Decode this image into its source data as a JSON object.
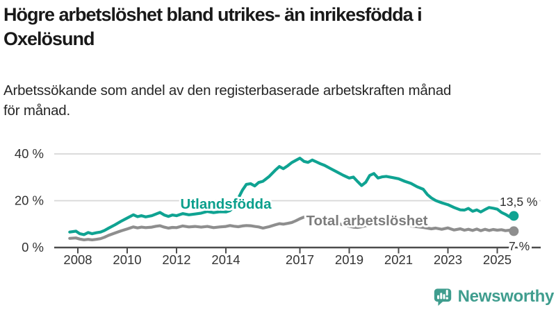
{
  "header": {
    "title": "Högre arbetslöshet bland utrikes- än inrikesfödda i Oxelösund",
    "title_lines": [
      "Högre arbetslöshet bland utrikes- än inrikesfödda i",
      "Oxelösund"
    ],
    "subtitle": "Arbetssökande som andel av den registerbaserade arbetskraften månad för månad.",
    "subtitle_lines": [
      "Arbetssökande som andel av den registerbaserade arbetskraften månad",
      "för månad."
    ]
  },
  "chart_data": {
    "type": "line",
    "title": "Högre arbetslöshet bland utrikes- än inrikesfödda i Oxelösund",
    "subtitle": "Arbetssökande som andel av den registerbaserade arbetskraften månad för månad.",
    "unit": "%",
    "grid": "horizontal",
    "legend_position": "inline-labels",
    "ylim": [
      0,
      42
    ],
    "xlim": [
      2007.6,
      2025.8
    ],
    "y_ticks": [
      {
        "value": 0,
        "label": "0 %"
      },
      {
        "value": 20,
        "label": "20 %"
      },
      {
        "value": 40,
        "label": "40 %"
      }
    ],
    "x_ticks": [
      {
        "year": 2008,
        "label": "2008"
      },
      {
        "year": 2010,
        "label": "2010"
      },
      {
        "year": 2012,
        "label": "2012"
      },
      {
        "year": 2014,
        "label": "2014"
      },
      {
        "year": 2017,
        "label": "2017"
      },
      {
        "year": 2019,
        "label": "2019"
      },
      {
        "year": 2021,
        "label": "2021"
      },
      {
        "year": 2023,
        "label": "2023"
      },
      {
        "year": 2025,
        "label": "2025"
      }
    ],
    "x": [
      2007.67,
      2007.92,
      2008.08,
      2008.25,
      2008.42,
      2008.58,
      2008.75,
      2008.92,
      2009.08,
      2009.25,
      2009.5,
      2009.75,
      2010,
      2010.25,
      2010.42,
      2010.58,
      2010.75,
      2011,
      2011.17,
      2011.33,
      2011.5,
      2011.67,
      2011.83,
      2012,
      2012.25,
      2012.5,
      2012.75,
      2013,
      2013.25,
      2013.5,
      2013.75,
      2014,
      2014.17,
      2014.33,
      2014.5,
      2014.67,
      2014.83,
      2015,
      2015.17,
      2015.33,
      2015.5,
      2015.75,
      2016,
      2016.17,
      2016.33,
      2016.5,
      2016.67,
      2016.83,
      2017,
      2017.17,
      2017.33,
      2017.5,
      2017.67,
      2017.83,
      2018,
      2018.25,
      2018.5,
      2018.75,
      2019,
      2019.17,
      2019.33,
      2019.5,
      2019.67,
      2019.83,
      2020,
      2020.17,
      2020.33,
      2020.5,
      2020.75,
      2021,
      2021.25,
      2021.5,
      2021.75,
      2022,
      2022.17,
      2022.33,
      2022.5,
      2022.75,
      2023,
      2023.25,
      2023.5,
      2023.67,
      2023.83,
      2024,
      2024.17,
      2024.33,
      2024.5,
      2024.67,
      2024.83,
      2025,
      2025.17,
      2025.33,
      2025.5,
      2025.67
    ],
    "series": [
      {
        "name": "Total arbetslöshet",
        "label": "Total arbetslöshet",
        "color": "#8e8e8e",
        "label_color": "#7c7c7c",
        "end_label": "7 %",
        "end_value": 7.0,
        "values": [
          3.9,
          4.1,
          3.6,
          3.3,
          3.5,
          3.3,
          3.5,
          3.8,
          4.4,
          5.2,
          6.2,
          7.1,
          7.9,
          8.8,
          8.4,
          8.7,
          8.5,
          8.7,
          9.1,
          9.3,
          8.7,
          8.3,
          8.6,
          8.5,
          9.2,
          8.8,
          9.0,
          8.7,
          9.0,
          8.5,
          8.8,
          9.0,
          9.4,
          9.1,
          8.9,
          9.2,
          9.4,
          9.3,
          9.0,
          8.8,
          8.3,
          8.9,
          9.7,
          10.2,
          10.0,
          10.3,
          10.7,
          11.4,
          12.3,
          13.0,
          13.2,
          12.9,
          12.5,
          12.1,
          11.6,
          11.0,
          10.4,
          9.7,
          9.1,
          8.7,
          8.6,
          8.9,
          9.3,
          9.8,
          10.3,
          10.7,
          10.9,
          10.6,
          10.2,
          9.9,
          9.5,
          9.2,
          8.9,
          8.6,
          8.3,
          8.0,
          8.3,
          7.8,
          8.4,
          7.5,
          8.0,
          7.4,
          7.8,
          7.3,
          7.9,
          7.2,
          7.8,
          7.3,
          7.7,
          7.4,
          7.6,
          7.2,
          7.4,
          7.0
        ]
      },
      {
        "name": "Utlandsfödda",
        "label": "Utlandsfödda",
        "color": "#0fa392",
        "label_color": "#0a9f8c",
        "end_label": "13,5 %",
        "end_value": 13.5,
        "values": [
          6.6,
          7.0,
          5.9,
          5.5,
          6.4,
          5.9,
          6.3,
          6.6,
          7.3,
          8.3,
          9.7,
          11.2,
          12.6,
          14.0,
          13.2,
          13.6,
          13.1,
          13.6,
          14.3,
          15.0,
          13.9,
          13.3,
          13.9,
          13.6,
          14.5,
          14.0,
          14.3,
          14.7,
          15.4,
          14.9,
          15.3,
          15.2,
          15.8,
          17.5,
          21.0,
          24.5,
          27.0,
          27.3,
          26.3,
          27.8,
          28.3,
          30.3,
          33.0,
          34.6,
          33.7,
          34.9,
          36.3,
          37.2,
          38.2,
          36.8,
          36.4,
          37.4,
          36.6,
          35.8,
          35.1,
          33.7,
          32.3,
          30.9,
          29.7,
          30.1,
          28.3,
          26.5,
          27.9,
          30.8,
          31.6,
          29.7,
          30.2,
          30.4,
          29.9,
          29.4,
          28.3,
          27.4,
          26.0,
          24.9,
          22.6,
          21.2,
          20.1,
          19.1,
          18.3,
          17.1,
          16.1,
          16.0,
          16.7,
          15.5,
          16.1,
          15.2,
          16.2,
          17.1,
          16.8,
          16.4,
          15.0,
          14.2,
          13.1,
          13.5
        ]
      }
    ],
    "colors": {
      "grid": "#d6d6d6",
      "axis": "#4c4c4c",
      "tick_text": "#333333",
      "end_label_text": "#2e2e2e"
    }
  },
  "footer": {
    "brand": "Newsworthy",
    "logo_icon": "bar-chart-speech-bubble-icon",
    "brand_color": "#3f9d8e"
  }
}
